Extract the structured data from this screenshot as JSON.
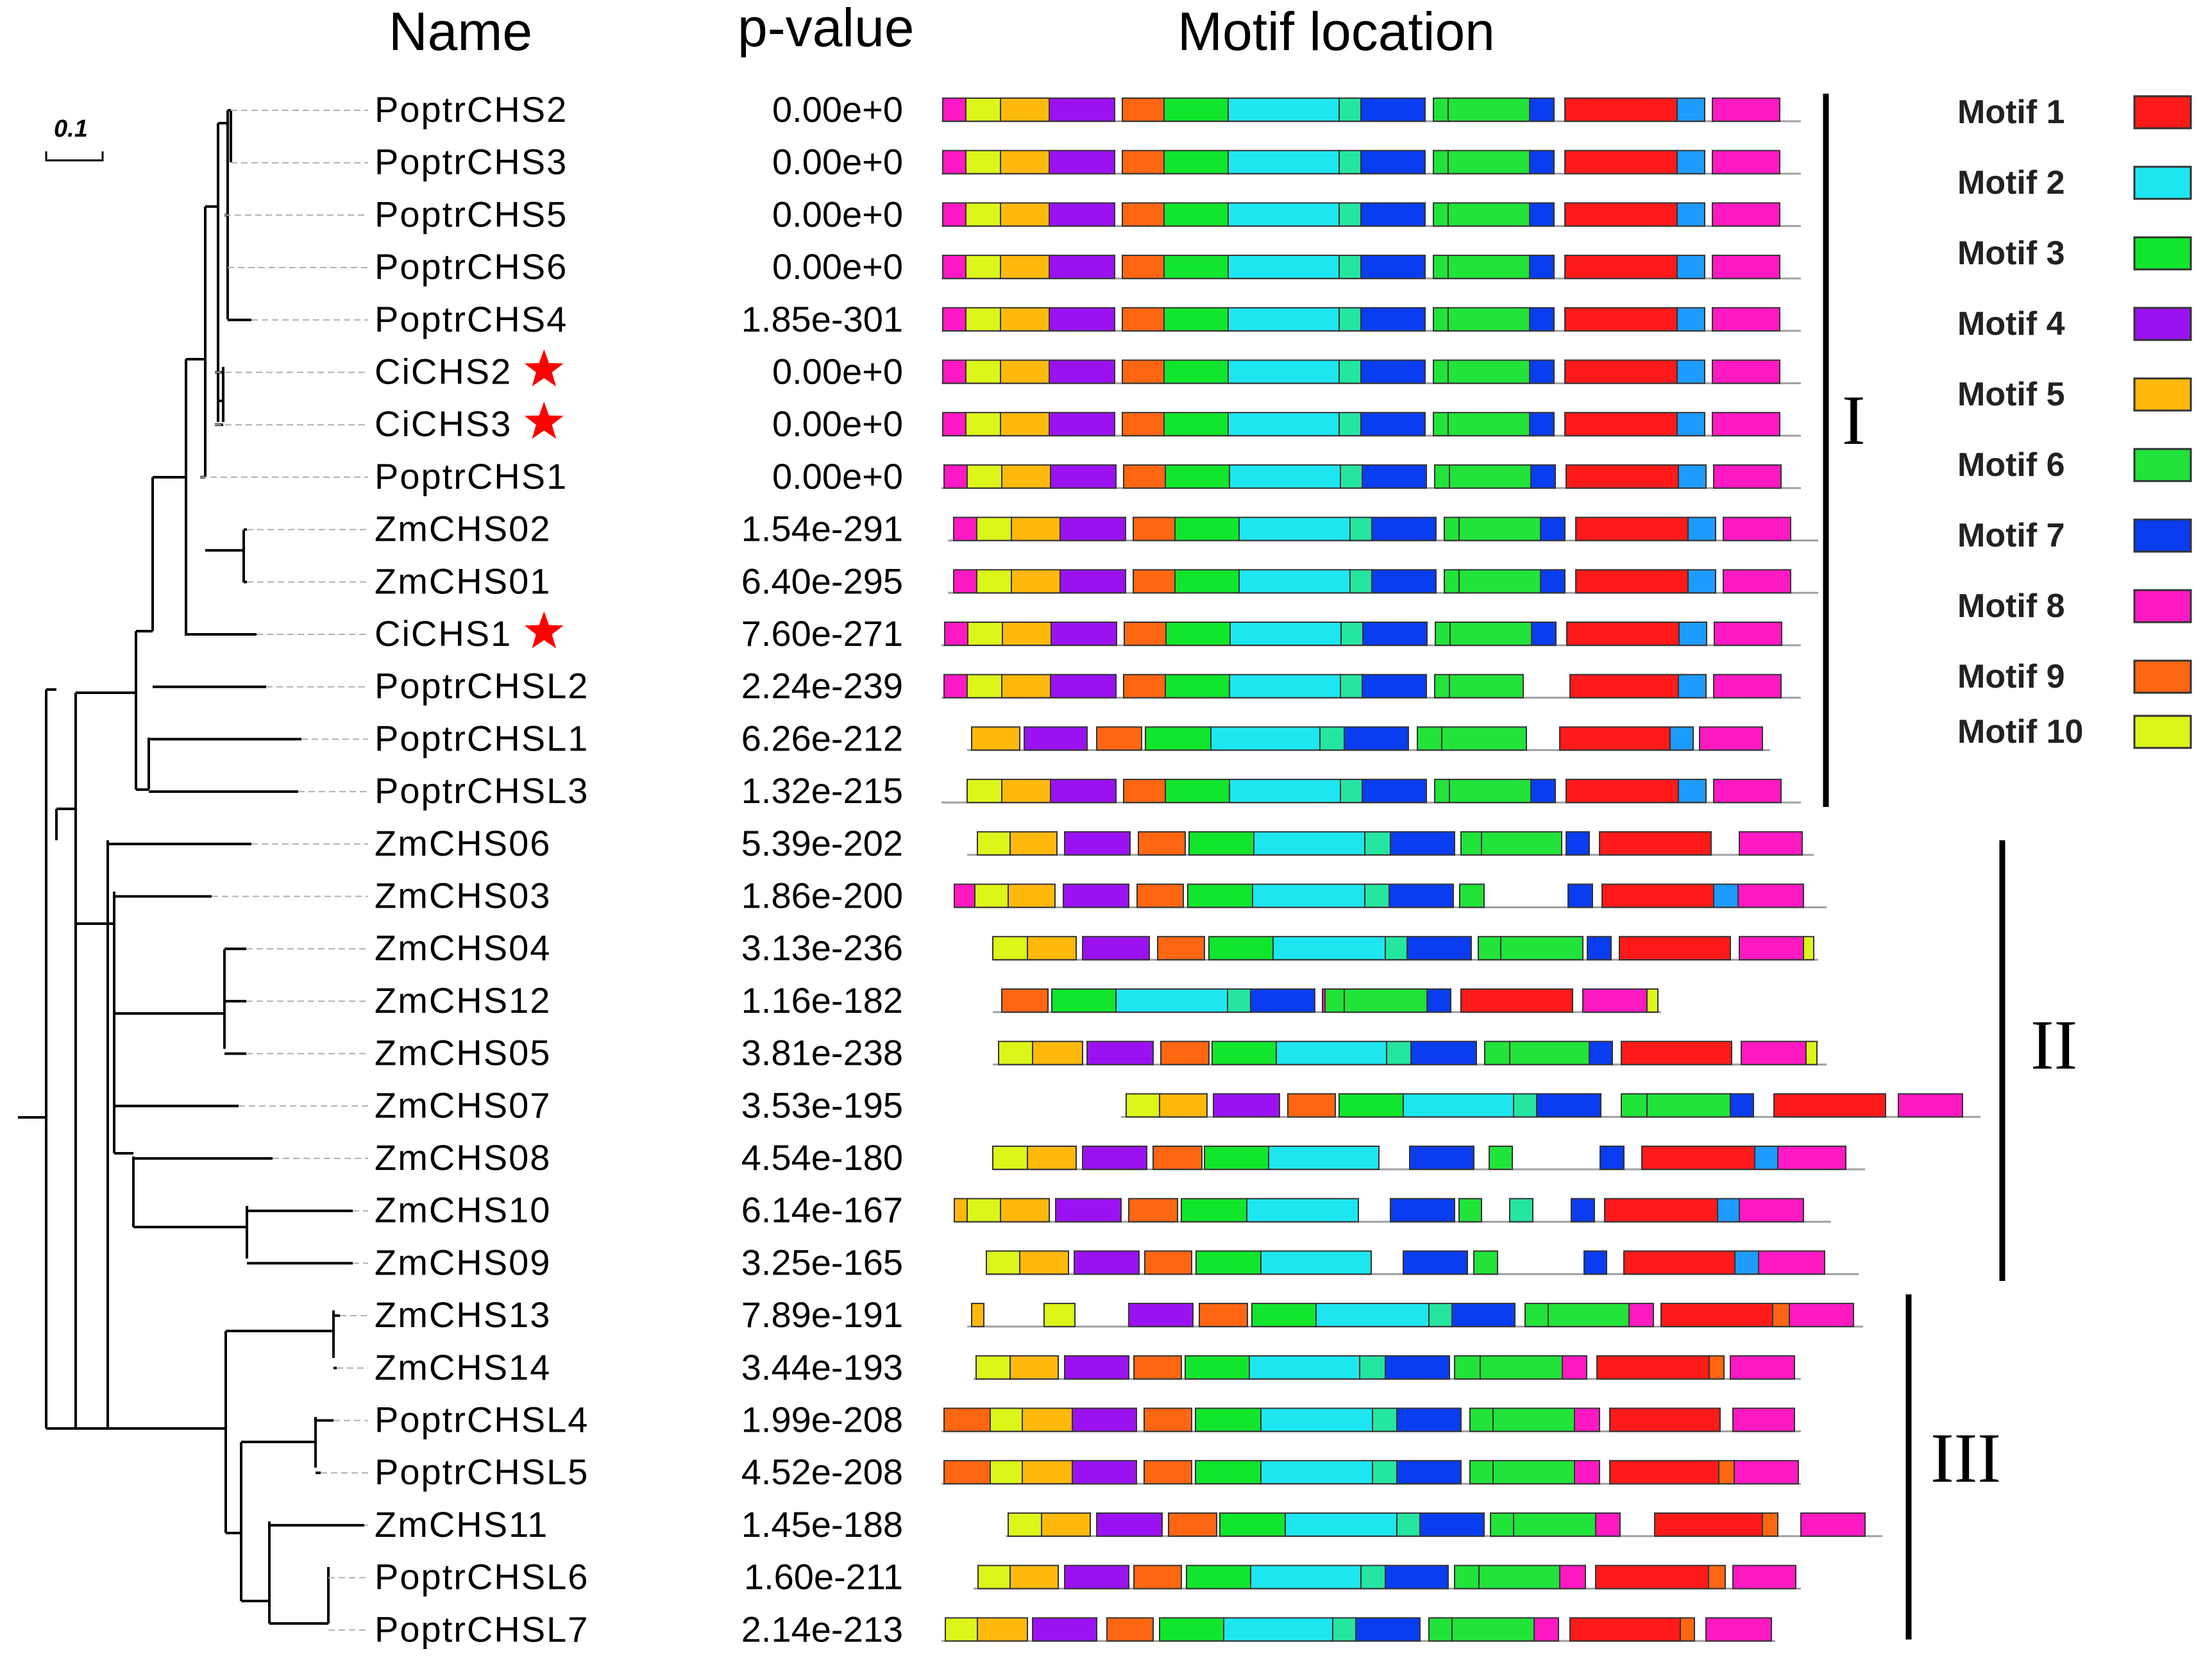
{
  "headers": {
    "name": "Name",
    "pvalue": "p-value",
    "motif": "Motif location"
  },
  "scale_label": "0.1",
  "motifs": [
    {
      "id": 1,
      "label": "Motif 1",
      "color": "#ff1a1a"
    },
    {
      "id": 2,
      "label": "Motif 2",
      "color": "#1ee6f0"
    },
    {
      "id": 3,
      "label": "Motif 3",
      "color": "#11e62c"
    },
    {
      "id": 4,
      "label": "Motif 4",
      "color": "#9b12f2"
    },
    {
      "id": 5,
      "label": "Motif 5",
      "color": "#ffb90d"
    },
    {
      "id": 6,
      "label": "Motif 6",
      "color": "#22e33a"
    },
    {
      "id": 7,
      "label": "Motif 7",
      "color": "#0a3cf0"
    },
    {
      "id": 8,
      "label": "Motif 8",
      "color": "#ff19c2"
    },
    {
      "id": 9,
      "label": "Motif 9",
      "color": "#ff6612"
    },
    {
      "id": 10,
      "label": "Motif 10",
      "color": "#dcf61a"
    }
  ],
  "extra_colors": {
    "teal": "#25e6a0",
    "sky": "#1e9bff",
    "star": "#ff0000"
  },
  "clades": [
    "I",
    "II",
    "III"
  ],
  "rows": [
    {
      "name": "PoptrCHS2",
      "p": "0.00e+0",
      "star": false
    },
    {
      "name": "PoptrCHS3",
      "p": "0.00e+0",
      "star": false
    },
    {
      "name": "PoptrCHS5",
      "p": "0.00e+0",
      "star": false
    },
    {
      "name": "PoptrCHS6",
      "p": "0.00e+0",
      "star": false
    },
    {
      "name": "PoptrCHS4",
      "p": "1.85e-301",
      "star": false
    },
    {
      "name": "CiCHS2",
      "p": "0.00e+0",
      "star": true
    },
    {
      "name": "CiCHS3",
      "p": "0.00e+0",
      "star": true
    },
    {
      "name": "PoptrCHS1",
      "p": "0.00e+0",
      "star": false
    },
    {
      "name": "ZmCHS02",
      "p": "1.54e-291",
      "star": false
    },
    {
      "name": "ZmCHS01",
      "p": "6.40e-295",
      "star": false
    },
    {
      "name": "CiCHS1",
      "p": "7.60e-271",
      "star": true
    },
    {
      "name": "PoptrCHSL2",
      "p": "2.24e-239",
      "star": false
    },
    {
      "name": "PoptrCHSL1",
      "p": "6.26e-212",
      "star": false
    },
    {
      "name": "PoptrCHSL3",
      "p": "1.32e-215",
      "star": false
    },
    {
      "name": "ZmCHS06",
      "p": "5.39e-202",
      "star": false
    },
    {
      "name": "ZmCHS03",
      "p": "1.86e-200",
      "star": false
    },
    {
      "name": "ZmCHS04",
      "p": "3.13e-236",
      "star": false
    },
    {
      "name": "ZmCHS12",
      "p": "1.16e-182",
      "star": false
    },
    {
      "name": "ZmCHS05",
      "p": "3.81e-238",
      "star": false
    },
    {
      "name": "ZmCHS07",
      "p": "3.53e-195",
      "star": false
    },
    {
      "name": "ZmCHS08",
      "p": "4.54e-180",
      "star": false
    },
    {
      "name": "ZmCHS10",
      "p": "6.14e-167",
      "star": false
    },
    {
      "name": "ZmCHS09",
      "p": "3.25e-165",
      "star": false
    },
    {
      "name": "ZmCHS13",
      "p": "7.89e-191",
      "star": false
    },
    {
      "name": "ZmCHS14",
      "p": "3.44e-193",
      "star": false
    },
    {
      "name": "PoptrCHSL4",
      "p": "1.99e-208",
      "star": false
    },
    {
      "name": "PoptrCHSL5",
      "p": "4.52e-208",
      "star": false
    },
    {
      "name": "ZmCHS11",
      "p": "1.45e-188",
      "star": false
    },
    {
      "name": "PoptrCHSL6",
      "p": "1.60e-211",
      "star": false
    },
    {
      "name": "PoptrCHSL7",
      "p": "2.14e-213",
      "star": false
    }
  ]
}
